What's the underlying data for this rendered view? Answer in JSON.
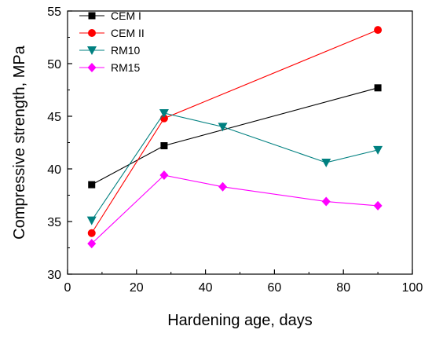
{
  "chart_data": {
    "type": "line",
    "title": "",
    "xlabel": "Hardening age, days",
    "ylabel": "Compressive strength, MPa",
    "xlim": [
      0,
      100
    ],
    "ylim": [
      30,
      55
    ],
    "xticks": [
      0,
      20,
      40,
      60,
      80,
      100
    ],
    "yticks": [
      30,
      35,
      40,
      45,
      50,
      55
    ],
    "legend_position": "top-left",
    "grid": false,
    "series": [
      {
        "name": "CEM I",
        "color": "#000000",
        "marker": "square",
        "x": [
          7,
          28,
          90
        ],
        "y": [
          38.5,
          42.2,
          47.7
        ]
      },
      {
        "name": "CEM II",
        "color": "#ff0000",
        "marker": "circle",
        "x": [
          7,
          28,
          90
        ],
        "y": [
          33.9,
          44.8,
          53.2
        ]
      },
      {
        "name": "RM10",
        "color": "#008080",
        "marker": "triangle-down",
        "x": [
          7,
          28,
          45,
          75,
          90
        ],
        "y": [
          35.1,
          45.3,
          44.0,
          40.6,
          41.8
        ]
      },
      {
        "name": "RM15",
        "color": "#ff00ff",
        "marker": "diamond",
        "x": [
          7,
          28,
          45,
          75,
          90
        ],
        "y": [
          32.9,
          39.4,
          38.3,
          36.9,
          36.5
        ]
      }
    ]
  }
}
